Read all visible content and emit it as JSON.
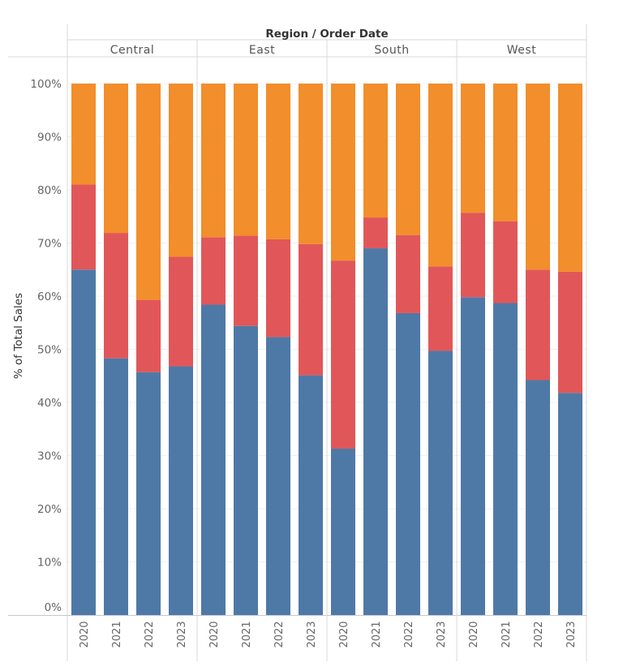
{
  "chart_data": {
    "type": "bar",
    "stacked": true,
    "header_title": "Region / Order Date",
    "ylabel": "% of Total Sales",
    "ylim": [
      0,
      100
    ],
    "yticks": [
      "0%",
      "10%",
      "20%",
      "30%",
      "40%",
      "50%",
      "60%",
      "70%",
      "80%",
      "90%",
      "100%"
    ],
    "grid": true,
    "colors": {
      "segment_1": "#4e79a7",
      "segment_2": "#e15759",
      "segment_3": "#f28e2b"
    },
    "regions": [
      {
        "name": "Central",
        "years": [
          "2020",
          "2021",
          "2022",
          "2023"
        ],
        "segments": [
          [
            65.0,
            16.0,
            19.0
          ],
          [
            48.3,
            23.6,
            28.1
          ],
          [
            45.7,
            13.6,
            40.7
          ],
          [
            46.8,
            20.6,
            32.6
          ]
        ]
      },
      {
        "name": "East",
        "years": [
          "2020",
          "2021",
          "2022",
          "2023"
        ],
        "segments": [
          [
            58.4,
            12.7,
            28.9
          ],
          [
            54.4,
            17.0,
            28.6
          ],
          [
            52.3,
            18.4,
            29.3
          ],
          [
            45.1,
            24.7,
            30.2
          ]
        ]
      },
      {
        "name": "South",
        "years": [
          "2020",
          "2021",
          "2022",
          "2023"
        ],
        "segments": [
          [
            31.3,
            35.4,
            33.3
          ],
          [
            69.0,
            5.8,
            25.2
          ],
          [
            56.8,
            14.7,
            28.5
          ],
          [
            49.7,
            15.9,
            34.4
          ]
        ]
      },
      {
        "name": "West",
        "years": [
          "2020",
          "2021",
          "2022",
          "2023"
        ],
        "segments": [
          [
            59.8,
            15.9,
            24.3
          ],
          [
            58.7,
            15.4,
            25.9
          ],
          [
            44.2,
            20.8,
            35.0
          ],
          [
            41.8,
            22.8,
            35.4
          ]
        ]
      }
    ]
  }
}
